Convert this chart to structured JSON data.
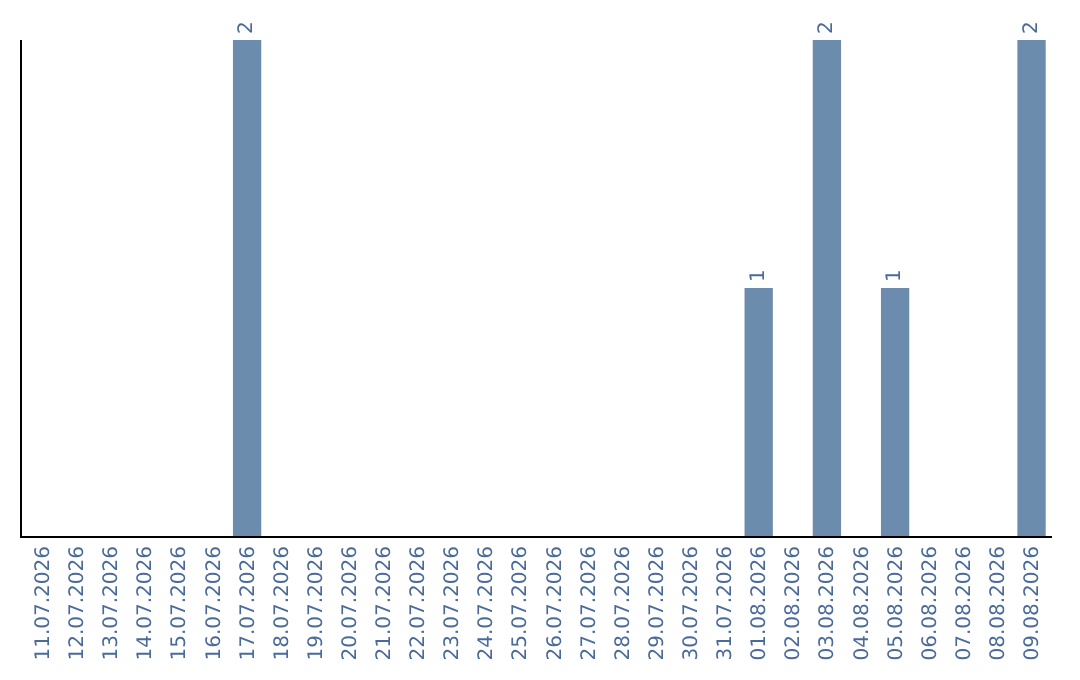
{
  "chart_data": {
    "type": "bar",
    "categories": [
      "11.07.2026",
      "12.07.2026",
      "13.07.2026",
      "14.07.2026",
      "15.07.2026",
      "16.07.2026",
      "17.07.2026",
      "18.07.2026",
      "19.07.2026",
      "20.07.2026",
      "21.07.2026",
      "22.07.2026",
      "23.07.2026",
      "24.07.2026",
      "25.07.2026",
      "26.07.2026",
      "27.07.2026",
      "28.07.2026",
      "29.07.2026",
      "30.07.2026",
      "31.07.2026",
      "01.08.2026",
      "02.08.2026",
      "03.08.2026",
      "04.08.2026",
      "05.08.2026",
      "06.08.2026",
      "07.08.2026",
      "08.08.2026",
      "09.08.2026"
    ],
    "values": [
      null,
      null,
      null,
      null,
      null,
      null,
      2,
      null,
      null,
      null,
      null,
      null,
      null,
      null,
      null,
      null,
      null,
      null,
      null,
      null,
      null,
      1,
      null,
      2,
      null,
      1,
      null,
      null,
      null,
      2
    ],
    "color": "#6b8cac",
    "ylim": [
      0,
      2
    ],
    "data_labels": true,
    "tick_labels": "x"
  }
}
